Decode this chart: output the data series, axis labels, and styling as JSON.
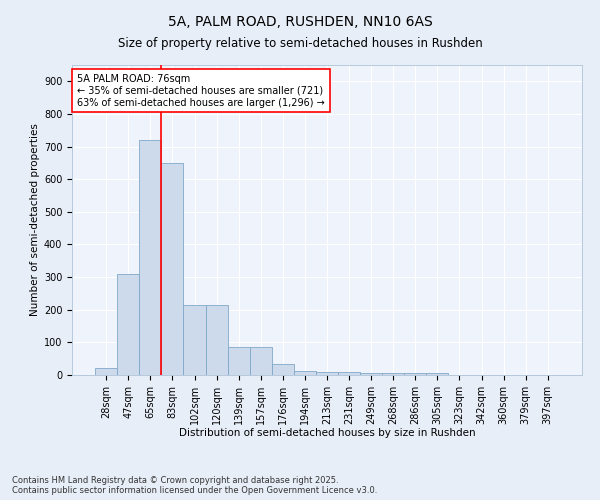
{
  "title": "5A, PALM ROAD, RUSHDEN, NN10 6AS",
  "subtitle": "Size of property relative to semi-detached houses in Rushden",
  "xlabel": "Distribution of semi-detached houses by size in Rushden",
  "ylabel": "Number of semi-detached properties",
  "categories": [
    "28sqm",
    "47sqm",
    "65sqm",
    "83sqm",
    "102sqm",
    "120sqm",
    "139sqm",
    "157sqm",
    "176sqm",
    "194sqm",
    "213sqm",
    "231sqm",
    "249sqm",
    "268sqm",
    "286sqm",
    "305sqm",
    "323sqm",
    "342sqm",
    "360sqm",
    "379sqm",
    "397sqm"
  ],
  "values": [
    20,
    310,
    720,
    650,
    215,
    215,
    85,
    85,
    35,
    12,
    10,
    10,
    5,
    5,
    5,
    5,
    0,
    0,
    0,
    0,
    0
  ],
  "bar_color": "#ccdaeb",
  "bar_edge_color": "#7fa8c8",
  "vline_x": 2.5,
  "vline_color": "red",
  "annotation_text": "5A PALM ROAD: 76sqm\n← 35% of semi-detached houses are smaller (721)\n63% of semi-detached houses are larger (1,296) →",
  "annotation_box_color": "white",
  "annotation_box_edge": "red",
  "ylim": [
    0,
    950
  ],
  "yticks": [
    0,
    100,
    200,
    300,
    400,
    500,
    600,
    700,
    800,
    900
  ],
  "footer": "Contains HM Land Registry data © Crown copyright and database right 2025.\nContains public sector information licensed under the Open Government Licence v3.0.",
  "bg_color": "#e8eef8",
  "plot_bg_color": "#eef3fc",
  "grid_color": "white",
  "title_fontsize": 10,
  "subtitle_fontsize": 8.5,
  "axis_label_fontsize": 7.5,
  "tick_fontsize": 7,
  "footer_fontsize": 6,
  "annotation_fontsize": 7
}
